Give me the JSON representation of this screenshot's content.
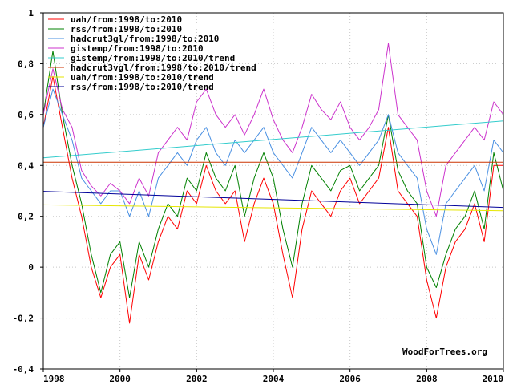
{
  "chart_data": {
    "type": "line",
    "xlim": [
      1998,
      2010
    ],
    "ylim": [
      -0.4,
      1.0
    ],
    "x_ticks": [
      1998,
      2000,
      2002,
      2004,
      2006,
      2008,
      2010
    ],
    "y_ticks": [
      -0.4,
      -0.2,
      0,
      0.2,
      0.4,
      0.6,
      0.8,
      1.0
    ],
    "x_tick_labels": [
      "1998",
      "2000",
      "2002",
      "2004",
      "2006",
      "2008",
      "2010"
    ],
    "y_tick_labels": [
      "-0,4",
      "-0,2",
      "0",
      "0,2",
      "0,4",
      "0,6",
      "0,8",
      "1"
    ],
    "grid": true,
    "legend_position": "top-left",
    "credit": "WoodForTrees.org",
    "series": [
      {
        "name": "uah/from:1998/to:2010",
        "color": "#ff0000",
        "x": [
          1998.0,
          1998.25,
          1998.5,
          1998.75,
          1999.0,
          1999.25,
          1999.5,
          1999.75,
          2000.0,
          2000.25,
          2000.5,
          2000.75,
          2001.0,
          2001.25,
          2001.5,
          2001.75,
          2002.0,
          2002.25,
          2002.5,
          2002.75,
          2003.0,
          2003.25,
          2003.5,
          2003.75,
          2004.0,
          2004.25,
          2004.5,
          2004.75,
          2005.0,
          2005.25,
          2005.5,
          2005.75,
          2006.0,
          2006.25,
          2006.5,
          2006.75,
          2007.0,
          2007.25,
          2007.5,
          2007.75,
          2008.0,
          2008.25,
          2008.5,
          2008.75,
          2009.0,
          2009.25,
          2009.5,
          2009.75,
          2010.0
        ],
        "y": [
          0.55,
          0.75,
          0.55,
          0.35,
          0.2,
          0.0,
          -0.12,
          0.0,
          0.05,
          -0.22,
          0.05,
          -0.05,
          0.1,
          0.2,
          0.15,
          0.3,
          0.25,
          0.4,
          0.3,
          0.25,
          0.3,
          0.1,
          0.25,
          0.35,
          0.25,
          0.05,
          -0.12,
          0.15,
          0.3,
          0.25,
          0.2,
          0.3,
          0.35,
          0.25,
          0.3,
          0.35,
          0.55,
          0.3,
          0.25,
          0.2,
          -0.05,
          -0.2,
          0.0,
          0.1,
          0.15,
          0.25,
          0.1,
          0.4,
          0.4
        ]
      },
      {
        "name": "rss/from:1998/to:2010",
        "color": "#008000",
        "x": [
          1998.0,
          1998.25,
          1998.5,
          1998.75,
          1999.0,
          1999.25,
          1999.5,
          1999.75,
          2000.0,
          2000.25,
          2000.5,
          2000.75,
          2001.0,
          2001.25,
          2001.5,
          2001.75,
          2002.0,
          2002.25,
          2002.5,
          2002.75,
          2003.0,
          2003.25,
          2003.5,
          2003.75,
          2004.0,
          2004.25,
          2004.5,
          2004.75,
          2005.0,
          2005.25,
          2005.5,
          2005.75,
          2006.0,
          2006.25,
          2006.5,
          2006.75,
          2007.0,
          2007.25,
          2007.5,
          2007.75,
          2008.0,
          2008.25,
          2008.5,
          2008.75,
          2009.0,
          2009.25,
          2009.5,
          2009.75,
          2010.0
        ],
        "y": [
          0.6,
          0.85,
          0.6,
          0.4,
          0.25,
          0.05,
          -0.1,
          0.05,
          0.1,
          -0.12,
          0.1,
          0.0,
          0.15,
          0.25,
          0.2,
          0.35,
          0.3,
          0.45,
          0.35,
          0.3,
          0.4,
          0.2,
          0.35,
          0.45,
          0.35,
          0.15,
          0.0,
          0.25,
          0.4,
          0.35,
          0.3,
          0.38,
          0.4,
          0.3,
          0.35,
          0.4,
          0.6,
          0.38,
          0.3,
          0.25,
          0.0,
          -0.08,
          0.05,
          0.15,
          0.2,
          0.3,
          0.15,
          0.45,
          0.3
        ]
      },
      {
        "name": "hadcrut3gl/from:1998/to:2010",
        "color": "#4a90e2",
        "x": [
          1998.0,
          1998.25,
          1998.5,
          1998.75,
          1999.0,
          1999.25,
          1999.5,
          1999.75,
          2000.0,
          2000.25,
          2000.5,
          2000.75,
          2001.0,
          2001.25,
          2001.5,
          2001.75,
          2002.0,
          2002.25,
          2002.5,
          2002.75,
          2003.0,
          2003.25,
          2003.5,
          2003.75,
          2004.0,
          2004.25,
          2004.5,
          2004.75,
          2005.0,
          2005.25,
          2005.5,
          2005.75,
          2006.0,
          2006.25,
          2006.5,
          2006.75,
          2007.0,
          2007.25,
          2007.5,
          2007.75,
          2008.0,
          2008.25,
          2008.5,
          2008.75,
          2009.0,
          2009.25,
          2009.5,
          2009.75,
          2010.0
        ],
        "y": [
          0.55,
          0.7,
          0.6,
          0.5,
          0.35,
          0.3,
          0.25,
          0.3,
          0.3,
          0.2,
          0.3,
          0.2,
          0.35,
          0.4,
          0.45,
          0.4,
          0.5,
          0.55,
          0.45,
          0.4,
          0.5,
          0.45,
          0.5,
          0.55,
          0.45,
          0.4,
          0.35,
          0.45,
          0.55,
          0.5,
          0.45,
          0.5,
          0.45,
          0.4,
          0.45,
          0.5,
          0.6,
          0.45,
          0.4,
          0.35,
          0.15,
          0.05,
          0.25,
          0.3,
          0.35,
          0.4,
          0.3,
          0.5,
          0.45
        ]
      },
      {
        "name": "gistemp/from:1998/to:2010",
        "color": "#cc33cc",
        "x": [
          1998.0,
          1998.25,
          1998.5,
          1998.75,
          1999.0,
          1999.25,
          1999.5,
          1999.75,
          2000.0,
          2000.25,
          2000.5,
          2000.75,
          2001.0,
          2001.25,
          2001.5,
          2001.75,
          2002.0,
          2002.25,
          2002.5,
          2002.75,
          2003.0,
          2003.25,
          2003.5,
          2003.75,
          2004.0,
          2004.25,
          2004.5,
          2004.75,
          2005.0,
          2005.25,
          2005.5,
          2005.75,
          2006.0,
          2006.25,
          2006.5,
          2006.75,
          2007.0,
          2007.25,
          2007.5,
          2007.75,
          2008.0,
          2008.25,
          2008.5,
          2008.75,
          2009.0,
          2009.25,
          2009.5,
          2009.75,
          2010.0
        ],
        "y": [
          0.6,
          0.78,
          0.62,
          0.55,
          0.38,
          0.32,
          0.28,
          0.33,
          0.3,
          0.25,
          0.35,
          0.28,
          0.45,
          0.5,
          0.55,
          0.5,
          0.65,
          0.7,
          0.6,
          0.55,
          0.6,
          0.52,
          0.6,
          0.7,
          0.58,
          0.5,
          0.45,
          0.55,
          0.68,
          0.62,
          0.58,
          0.65,
          0.55,
          0.5,
          0.55,
          0.62,
          0.88,
          0.6,
          0.55,
          0.5,
          0.3,
          0.2,
          0.4,
          0.45,
          0.5,
          0.55,
          0.5,
          0.65,
          0.6
        ]
      },
      {
        "name": "gistemp/from:1998/to:2010/trend",
        "color": "#33cccc",
        "x": [
          1998,
          2010
        ],
        "y": [
          0.43,
          0.575
        ]
      },
      {
        "name": "hadcrut3vgl/from:1998/to:2010/trend",
        "color": "#cc3300",
        "x": [
          1998,
          2010
        ],
        "y": [
          0.413,
          0.413
        ]
      },
      {
        "name": "uah/from:1998/to:2010/trend",
        "color": "#e6e600",
        "x": [
          1998,
          2010
        ],
        "y": [
          0.245,
          0.222
        ]
      },
      {
        "name": "rss/from:1998/to:2010/trend",
        "color": "#000099",
        "x": [
          1998,
          2010
        ],
        "y": [
          0.298,
          0.235
        ]
      }
    ]
  }
}
